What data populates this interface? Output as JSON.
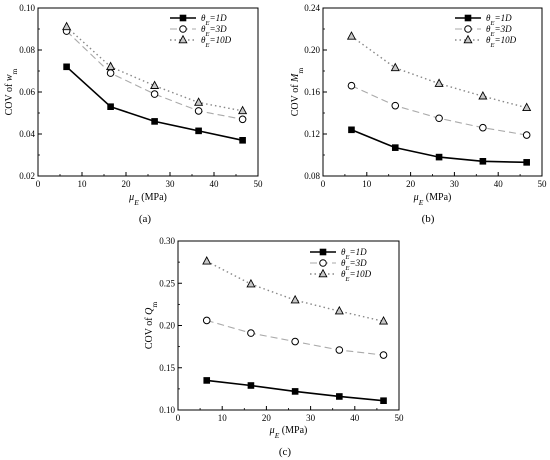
{
  "chart_data": [
    {
      "type": "line",
      "panel_label": "(a)",
      "ylabel": "COV of w",
      "ylabel_sub": "m",
      "xlabel": "μ",
      "xlabel_sub": "E",
      "xlabel_unit": " (MPa)",
      "xlim": [
        0,
        50
      ],
      "ylim": [
        0.02,
        0.1
      ],
      "xticks": [
        0,
        10,
        20,
        30,
        40,
        50
      ],
      "yticks": [
        0.02,
        0.04,
        0.06,
        0.08,
        0.1
      ],
      "ytick_labels": [
        "0.02",
        "0.04",
        "0.06",
        "0.08",
        "0.10"
      ],
      "legend_position": "top-right",
      "series": [
        {
          "name": "θ_E=1D",
          "legend_prefix": "θ",
          "legend_sub": "E",
          "legend_suffix": "=1D",
          "marker": "square",
          "line": "solid",
          "x": [
            6.5,
            16.5,
            26.5,
            36.5,
            46.5
          ],
          "y": [
            0.072,
            0.053,
            0.046,
            0.0415,
            0.037
          ]
        },
        {
          "name": "θ_E=3D",
          "legend_prefix": "θ",
          "legend_sub": "E",
          "legend_suffix": "=3D",
          "marker": "circle",
          "line": "dashed",
          "x": [
            6.5,
            16.5,
            26.5,
            36.5,
            46.5
          ],
          "y": [
            0.089,
            0.069,
            0.059,
            0.051,
            0.047
          ]
        },
        {
          "name": "θ_E=10D",
          "legend_prefix": "θ",
          "legend_sub": "E",
          "legend_suffix": "=10D",
          "marker": "triangle",
          "line": "dotted",
          "x": [
            6.5,
            16.5,
            26.5,
            36.5,
            46.5
          ],
          "y": [
            0.091,
            0.072,
            0.063,
            0.055,
            0.051
          ]
        }
      ]
    },
    {
      "type": "line",
      "panel_label": "(b)",
      "ylabel": "COV of M",
      "ylabel_sub": "m",
      "xlabel": "μ",
      "xlabel_sub": "E",
      "xlabel_unit": " (MPa)",
      "xlim": [
        0,
        50
      ],
      "ylim": [
        0.08,
        0.24
      ],
      "xticks": [
        0,
        10,
        20,
        30,
        40,
        50
      ],
      "yticks": [
        0.08,
        0.12,
        0.16,
        0.2,
        0.24
      ],
      "ytick_labels": [
        "0.08",
        "0.12",
        "0.16",
        "0.20",
        "0.24"
      ],
      "legend_position": "top-right",
      "series": [
        {
          "name": "θ_E=1D",
          "legend_prefix": "θ",
          "legend_sub": "E",
          "legend_suffix": "=1D",
          "marker": "square",
          "line": "solid",
          "x": [
            6.5,
            16.5,
            26.5,
            36.5,
            46.5
          ],
          "y": [
            0.124,
            0.107,
            0.098,
            0.094,
            0.093
          ]
        },
        {
          "name": "θ_E=3D",
          "legend_prefix": "θ",
          "legend_sub": "E",
          "legend_suffix": "=3D",
          "marker": "circle",
          "line": "dashed",
          "x": [
            6.5,
            16.5,
            26.5,
            36.5,
            46.5
          ],
          "y": [
            0.166,
            0.147,
            0.135,
            0.126,
            0.119
          ]
        },
        {
          "name": "θ_E=10D",
          "legend_prefix": "θ",
          "legend_sub": "E",
          "legend_suffix": "=10D",
          "marker": "triangle",
          "line": "dotted",
          "x": [
            6.5,
            16.5,
            26.5,
            36.5,
            46.5
          ],
          "y": [
            0.213,
            0.183,
            0.168,
            0.156,
            0.145
          ]
        }
      ]
    },
    {
      "type": "line",
      "panel_label": "(c)",
      "ylabel": "COV of Q",
      "ylabel_sub": "m",
      "xlabel": "μ",
      "xlabel_sub": "E",
      "xlabel_unit": " (MPa)",
      "xlim": [
        0,
        50
      ],
      "ylim": [
        0.1,
        0.3
      ],
      "xticks": [
        0,
        10,
        20,
        30,
        40,
        50
      ],
      "yticks": [
        0.1,
        0.15,
        0.2,
        0.25,
        0.3
      ],
      "ytick_labels": [
        "0.10",
        "0.15",
        "0.20",
        "0.25",
        "0.30"
      ],
      "legend_position": "top-right",
      "series": [
        {
          "name": "θ_E=1D",
          "legend_prefix": "θ",
          "legend_sub": "E",
          "legend_suffix": "=1D",
          "marker": "square",
          "line": "solid",
          "x": [
            6.5,
            16.5,
            26.5,
            36.5,
            46.5
          ],
          "y": [
            0.135,
            0.129,
            0.122,
            0.116,
            0.111
          ]
        },
        {
          "name": "θ_E=3D",
          "legend_prefix": "θ",
          "legend_sub": "E",
          "legend_suffix": "=3D",
          "marker": "circle",
          "line": "dashed",
          "x": [
            6.5,
            16.5,
            26.5,
            36.5,
            46.5
          ],
          "y": [
            0.206,
            0.191,
            0.181,
            0.171,
            0.165
          ]
        },
        {
          "name": "θ_E=10D",
          "legend_prefix": "θ",
          "legend_sub": "E",
          "legend_suffix": "=10D",
          "marker": "triangle",
          "line": "dotted",
          "x": [
            6.5,
            16.5,
            26.5,
            36.5,
            46.5
          ],
          "y": [
            0.276,
            0.249,
            0.23,
            0.217,
            0.205
          ]
        }
      ]
    }
  ]
}
